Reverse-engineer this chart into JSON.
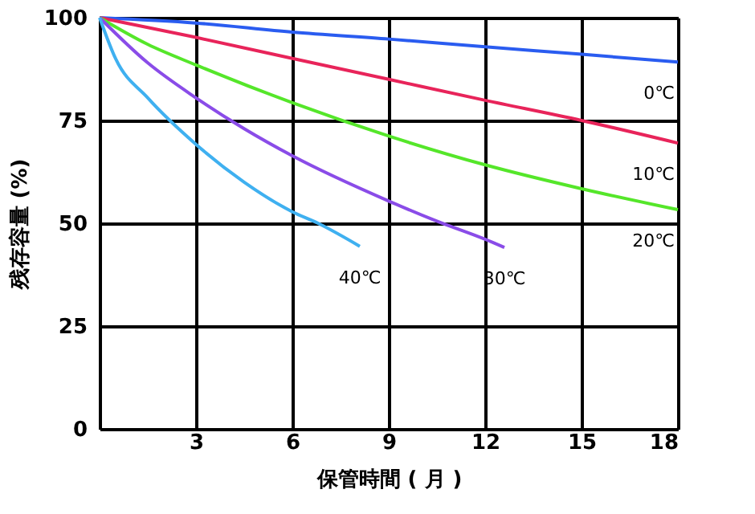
{
  "chart_data": {
    "type": "line",
    "xlabel": "保管時間 ( 月 )",
    "ylabel": "残存容量 (%)",
    "xlim": [
      0,
      18
    ],
    "xticks": [
      3,
      6,
      9,
      12,
      15,
      18
    ],
    "ylim": [
      0,
      100
    ],
    "yticks": [
      0,
      25,
      50,
      75,
      100
    ],
    "grid": true,
    "marker": "none",
    "line_style": "solid",
    "series": [
      {
        "name": "0℃",
        "color": "#2a5cf0",
        "x": [
          0,
          3,
          6,
          9,
          12,
          15,
          18
        ],
        "values": [
          100,
          98.7,
          96.5,
          94.8,
          92.9,
          91.1,
          89.2
        ]
      },
      {
        "name": "10℃",
        "color": "#e8245a",
        "x": [
          0,
          3,
          6,
          9,
          12,
          15,
          18
        ],
        "values": [
          100,
          95.2,
          90.1,
          85.0,
          79.9,
          75.0,
          69.5
        ]
      },
      {
        "name": "20℃",
        "color": "#55e62a",
        "x": [
          0,
          1.5,
          3,
          6,
          9,
          12,
          15,
          18
        ],
        "values": [
          100,
          93.5,
          88.5,
          79.3,
          71.2,
          64.2,
          58.4,
          53.3
        ]
      },
      {
        "name": "30℃",
        "color": "#8a4ce8",
        "x": [
          0,
          1.5,
          3,
          4.5,
          6,
          9,
          10.5,
          12,
          12.6
        ],
        "values": [
          100,
          89,
          80.5,
          73,
          66.4,
          55.4,
          50.5,
          46.1,
          44.1
        ]
      },
      {
        "name": "40℃",
        "color": "#3fb0f0",
        "x": [
          0,
          0.5,
          1.5,
          3,
          4.5,
          6,
          6.8,
          8.1
        ],
        "values": [
          100,
          90,
          80.5,
          69.2,
          60,
          52.8,
          50,
          44.4
        ]
      }
    ]
  }
}
